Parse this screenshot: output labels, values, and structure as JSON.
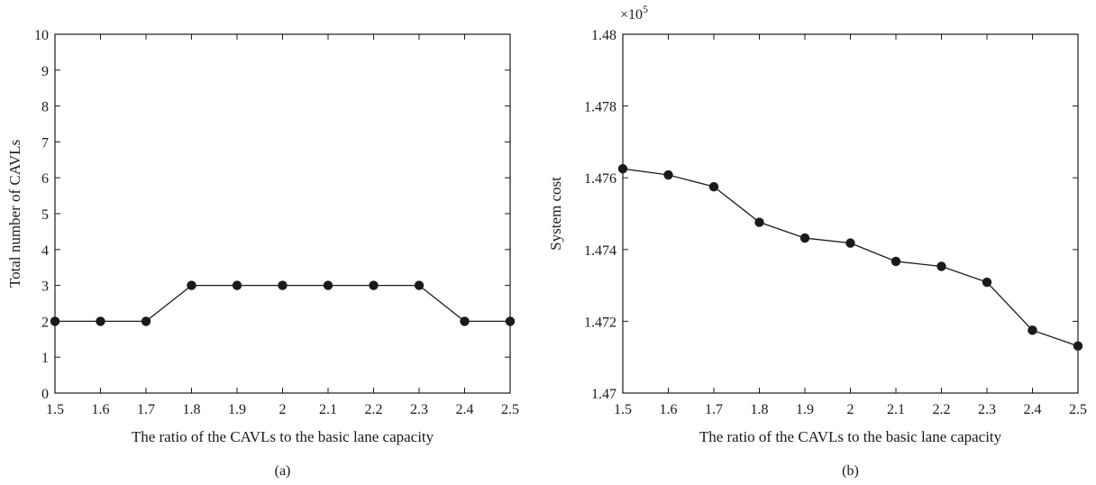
{
  "chart_data": [
    {
      "type": "line",
      "panel_label": "(a)",
      "xlabel": "The ratio of the CAVLs to the basic lane capacity",
      "ylabel": "Total number of CAVLs",
      "xlim": [
        1.5,
        2.5
      ],
      "ylim": [
        0,
        10
      ],
      "xticks": [
        "1.5",
        "1.6",
        "1.7",
        "1.8",
        "1.9",
        "2",
        "2.1",
        "2.2",
        "2.3",
        "2.4",
        "2.5"
      ],
      "yticks": [
        "0",
        "1",
        "2",
        "3",
        "4",
        "5",
        "6",
        "7",
        "8",
        "9",
        "10"
      ],
      "grid": false,
      "marker": "filled-circle",
      "line_color": "#1a1a1a",
      "series": [
        {
          "x": [
            1.5,
            1.6,
            1.7,
            1.8,
            1.9,
            2.0,
            2.1,
            2.2,
            2.3,
            2.4,
            2.5
          ],
          "y": [
            2,
            2,
            2,
            3,
            3,
            3,
            3,
            3,
            3,
            2,
            2
          ]
        }
      ]
    },
    {
      "type": "line",
      "panel_label": "(b)",
      "xlabel": "The ratio of the CAVLs to the basic lane capacity",
      "ylabel": "System cost",
      "multiplier_base": "×10",
      "multiplier_exp": "5",
      "xlim": [
        1.5,
        2.5
      ],
      "ylim": [
        1.47,
        1.48
      ],
      "xticks": [
        "1.5",
        "1.6",
        "1.7",
        "1.8",
        "1.9",
        "2",
        "2.1",
        "2.2",
        "2.3",
        "2.4",
        "2.5"
      ],
      "yticks": [
        "1.47",
        "1.472",
        "1.474",
        "1.476",
        "1.478",
        "1.48"
      ],
      "grid": false,
      "marker": "filled-circle",
      "line_color": "#1a1a1a",
      "series": [
        {
          "x": [
            1.5,
            1.6,
            1.7,
            1.8,
            1.9,
            2.0,
            2.1,
            2.2,
            2.3,
            2.4,
            2.5
          ],
          "y": [
            1.47625,
            1.47608,
            1.47575,
            1.47476,
            1.47432,
            1.47418,
            1.47367,
            1.47353,
            1.47309,
            1.47175,
            1.47131
          ]
        }
      ]
    }
  ]
}
